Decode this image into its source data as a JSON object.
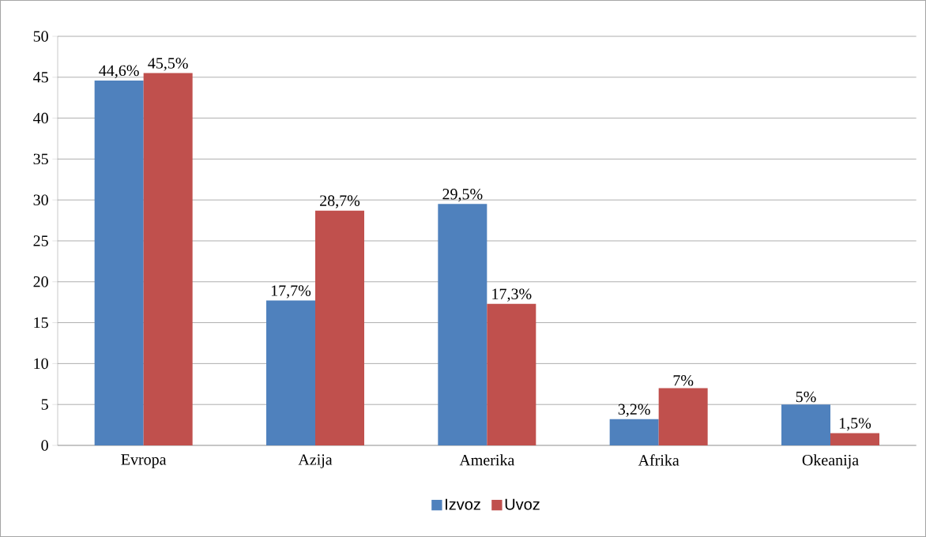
{
  "chart_data": {
    "type": "bar",
    "categories": [
      "Evropa",
      "Azija",
      "Amerika",
      "Afrika",
      "Okeanija"
    ],
    "series": [
      {
        "name": "Izvoz",
        "color": "#4f81bd",
        "values": [
          44.6,
          17.7,
          29.5,
          3.2,
          5
        ],
        "value_labels": [
          "44,6%",
          "17,7%",
          "29,5%",
          "3,2%",
          "5%"
        ]
      },
      {
        "name": "Uvoz",
        "color": "#c0504d",
        "values": [
          45.5,
          28.7,
          17.3,
          7,
          1.5
        ],
        "value_labels": [
          "45,5%",
          "28,7%",
          "17,3%",
          "7%",
          "1,5%"
        ]
      }
    ],
    "ylim": [
      0,
      50
    ],
    "yticks": [
      0,
      5,
      10,
      15,
      20,
      25,
      30,
      35,
      40,
      45,
      50
    ],
    "grid": "y",
    "legend": "bottom"
  }
}
